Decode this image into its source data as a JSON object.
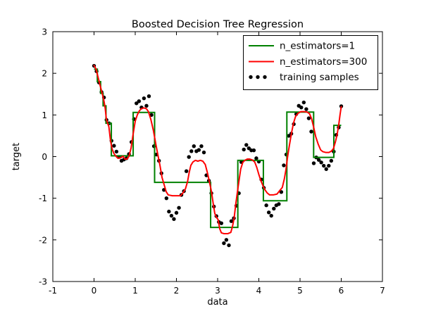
{
  "figure": {
    "title": "Boosted Decision Tree Regression",
    "xlabel": "data",
    "ylabel": "target",
    "background": "#ffffff",
    "axis_color": "#000000"
  },
  "chart_data": {
    "type": "line",
    "title": "Boosted Decision Tree Regression",
    "xlabel": "data",
    "ylabel": "target",
    "xlim": [
      -1,
      7
    ],
    "ylim": [
      -3,
      3
    ],
    "xticks": [
      -1,
      0,
      1,
      2,
      3,
      4,
      5,
      6,
      7
    ],
    "yticks": [
      -3,
      -2,
      -1,
      0,
      1,
      2,
      3
    ],
    "grid": false,
    "tick_direction": "in",
    "legend": {
      "position": "upper right",
      "entries": [
        {
          "label": "n_estimators=1",
          "color": "#008000",
          "marker": "line"
        },
        {
          "label": "n_estimators=300",
          "color": "#ff0000",
          "marker": "line"
        },
        {
          "label": "training samples",
          "color": "#000000",
          "marker": "dots"
        }
      ]
    },
    "series": [
      {
        "name": "n_estimators=1",
        "type": "step",
        "color": "#008000",
        "linewidth": 2,
        "steps": [
          [
            0.0,
            0.08,
            2.1
          ],
          [
            0.08,
            0.16,
            1.8
          ],
          [
            0.16,
            0.22,
            1.52
          ],
          [
            0.22,
            0.29,
            1.22
          ],
          [
            0.29,
            0.42,
            0.8
          ],
          [
            0.42,
            0.95,
            0.02
          ],
          [
            0.95,
            1.47,
            1.06
          ],
          [
            1.47,
            2.83,
            -0.62
          ],
          [
            2.83,
            3.49,
            -1.7
          ],
          [
            3.49,
            4.11,
            -0.09
          ],
          [
            4.11,
            4.68,
            -1.06
          ],
          [
            4.68,
            5.33,
            1.07
          ],
          [
            5.33,
            5.82,
            -0.02
          ],
          [
            5.82,
            6.0,
            0.75
          ]
        ]
      },
      {
        "name": "n_estimators=300",
        "type": "line",
        "color": "#ff0000",
        "linewidth": 2,
        "points": [
          [
            0.0,
            2.19
          ],
          [
            0.05,
            2.1
          ],
          [
            0.1,
            1.9
          ],
          [
            0.15,
            1.7
          ],
          [
            0.2,
            1.51
          ],
          [
            0.24,
            1.34
          ],
          [
            0.27,
            1.17
          ],
          [
            0.3,
            0.89
          ],
          [
            0.33,
            0.8
          ],
          [
            0.36,
            0.72
          ],
          [
            0.4,
            0.38
          ],
          [
            0.44,
            0.18
          ],
          [
            0.48,
            0.08
          ],
          [
            0.53,
            0.01
          ],
          [
            0.58,
            -0.04
          ],
          [
            0.65,
            -0.03
          ],
          [
            0.7,
            0.01
          ],
          [
            0.75,
            -0.06
          ],
          [
            0.8,
            -0.06
          ],
          [
            0.85,
            0.01
          ],
          [
            0.9,
            0.21
          ],
          [
            0.95,
            0.55
          ],
          [
            1.0,
            0.85
          ],
          [
            1.05,
            1.0
          ],
          [
            1.1,
            1.1
          ],
          [
            1.15,
            1.15
          ],
          [
            1.21,
            1.17
          ],
          [
            1.27,
            1.15
          ],
          [
            1.32,
            1.08
          ],
          [
            1.38,
            0.89
          ],
          [
            1.44,
            0.63
          ],
          [
            1.5,
            0.3
          ],
          [
            1.55,
            0.04
          ],
          [
            1.6,
            -0.21
          ],
          [
            1.65,
            -0.5
          ],
          [
            1.7,
            -0.67
          ],
          [
            1.75,
            -0.84
          ],
          [
            1.8,
            -0.92
          ],
          [
            1.9,
            -0.94
          ],
          [
            2.0,
            -0.94
          ],
          [
            2.1,
            -0.94
          ],
          [
            2.16,
            -0.87
          ],
          [
            2.22,
            -0.77
          ],
          [
            2.27,
            -0.6
          ],
          [
            2.31,
            -0.38
          ],
          [
            2.35,
            -0.21
          ],
          [
            2.4,
            -0.13
          ],
          [
            2.46,
            -0.09
          ],
          [
            2.52,
            -0.11
          ],
          [
            2.58,
            -0.09
          ],
          [
            2.64,
            -0.11
          ],
          [
            2.7,
            -0.19
          ],
          [
            2.75,
            -0.38
          ],
          [
            2.8,
            -0.6
          ],
          [
            2.85,
            -0.84
          ],
          [
            2.89,
            -1.11
          ],
          [
            2.93,
            -1.36
          ],
          [
            2.97,
            -1.46
          ],
          [
            3.01,
            -1.51
          ],
          [
            3.05,
            -1.73
          ],
          [
            3.09,
            -1.83
          ],
          [
            3.15,
            -1.85
          ],
          [
            3.25,
            -1.85
          ],
          [
            3.32,
            -1.82
          ],
          [
            3.36,
            -1.68
          ],
          [
            3.4,
            -1.48
          ],
          [
            3.44,
            -1.14
          ],
          [
            3.48,
            -0.85
          ],
          [
            3.52,
            -0.57
          ],
          [
            3.56,
            -0.3
          ],
          [
            3.61,
            -0.14
          ],
          [
            3.66,
            -0.09
          ],
          [
            3.72,
            -0.06
          ],
          [
            3.78,
            -0.06
          ],
          [
            3.84,
            -0.08
          ],
          [
            3.9,
            -0.13
          ],
          [
            3.95,
            -0.26
          ],
          [
            4.0,
            -0.43
          ],
          [
            4.05,
            -0.58
          ],
          [
            4.1,
            -0.7
          ],
          [
            4.15,
            -0.8
          ],
          [
            4.2,
            -0.87
          ],
          [
            4.26,
            -0.92
          ],
          [
            4.35,
            -0.92
          ],
          [
            4.44,
            -0.9
          ],
          [
            4.52,
            -0.8
          ],
          [
            4.57,
            -0.74
          ],
          [
            4.62,
            -0.53
          ],
          [
            4.66,
            -0.3
          ],
          [
            4.7,
            0.01
          ],
          [
            4.74,
            0.26
          ],
          [
            4.79,
            0.55
          ],
          [
            4.84,
            0.8
          ],
          [
            4.89,
            0.96
          ],
          [
            4.95,
            1.04
          ],
          [
            5.02,
            1.08
          ],
          [
            5.1,
            1.08
          ],
          [
            5.17,
            1.07
          ],
          [
            5.23,
            1.03
          ],
          [
            5.28,
            0.91
          ],
          [
            5.33,
            0.71
          ],
          [
            5.38,
            0.48
          ],
          [
            5.44,
            0.3
          ],
          [
            5.5,
            0.16
          ],
          [
            5.55,
            0.12
          ],
          [
            5.62,
            0.1
          ],
          [
            5.7,
            0.1
          ],
          [
            5.76,
            0.13
          ],
          [
            5.81,
            0.19
          ],
          [
            5.86,
            0.36
          ],
          [
            5.9,
            0.53
          ],
          [
            5.94,
            0.77
          ],
          [
            5.97,
            1.0
          ],
          [
            6.0,
            1.2
          ]
        ]
      },
      {
        "name": "training samples",
        "type": "scatter",
        "color": "#000000",
        "marker_radius": 2.7,
        "points": [
          [
            0.0,
            2.18
          ],
          [
            0.061,
            2.05
          ],
          [
            0.121,
            1.78
          ],
          [
            0.182,
            1.55
          ],
          [
            0.242,
            1.42
          ],
          [
            0.303,
            0.88
          ],
          [
            0.364,
            0.8
          ],
          [
            0.424,
            0.38
          ],
          [
            0.485,
            0.26
          ],
          [
            0.545,
            0.12
          ],
          [
            0.606,
            -0.01
          ],
          [
            0.667,
            -0.1
          ],
          [
            0.727,
            -0.07
          ],
          [
            0.788,
            -0.04
          ],
          [
            0.848,
            0.06
          ],
          [
            0.909,
            0.35
          ],
          [
            0.97,
            0.9
          ],
          [
            1.03,
            1.28
          ],
          [
            1.091,
            1.33
          ],
          [
            1.152,
            1.18
          ],
          [
            1.212,
            1.4
          ],
          [
            1.273,
            1.22
          ],
          [
            1.333,
            1.45
          ],
          [
            1.394,
            1.0
          ],
          [
            1.455,
            0.25
          ],
          [
            1.515,
            0.05
          ],
          [
            1.576,
            -0.1
          ],
          [
            1.636,
            -0.4
          ],
          [
            1.697,
            -0.8
          ],
          [
            1.758,
            -1.0
          ],
          [
            1.818,
            -1.32
          ],
          [
            1.879,
            -1.42
          ],
          [
            1.939,
            -1.5
          ],
          [
            2.0,
            -1.35
          ],
          [
            2.061,
            -1.23
          ],
          [
            2.121,
            -0.92
          ],
          [
            2.182,
            -0.83
          ],
          [
            2.242,
            -0.35
          ],
          [
            2.303,
            -0.01
          ],
          [
            2.364,
            0.13
          ],
          [
            2.424,
            0.25
          ],
          [
            2.485,
            0.13
          ],
          [
            2.545,
            0.16
          ],
          [
            2.606,
            0.25
          ],
          [
            2.667,
            0.1
          ],
          [
            2.727,
            -0.45
          ],
          [
            2.788,
            -0.58
          ],
          [
            2.848,
            -0.88
          ],
          [
            2.909,
            -1.2
          ],
          [
            2.97,
            -1.43
          ],
          [
            3.03,
            -1.57
          ],
          [
            3.091,
            -1.6
          ],
          [
            3.152,
            -2.08
          ],
          [
            3.212,
            -2.0
          ],
          [
            3.273,
            -2.13
          ],
          [
            3.333,
            -1.55
          ],
          [
            3.394,
            -1.48
          ],
          [
            3.455,
            -1.18
          ],
          [
            3.515,
            -0.88
          ],
          [
            3.576,
            -0.13
          ],
          [
            3.636,
            0.17
          ],
          [
            3.697,
            0.28
          ],
          [
            3.758,
            0.2
          ],
          [
            3.818,
            0.15
          ],
          [
            3.879,
            0.15
          ],
          [
            3.939,
            -0.04
          ],
          [
            4.0,
            -0.12
          ],
          [
            4.061,
            -0.55
          ],
          [
            4.121,
            -0.75
          ],
          [
            4.182,
            -1.17
          ],
          [
            4.242,
            -1.34
          ],
          [
            4.303,
            -1.42
          ],
          [
            4.364,
            -1.25
          ],
          [
            4.424,
            -1.17
          ],
          [
            4.485,
            -1.14
          ],
          [
            4.545,
            -0.85
          ],
          [
            4.606,
            -0.21
          ],
          [
            4.667,
            0.05
          ],
          [
            4.727,
            0.5
          ],
          [
            4.788,
            0.55
          ],
          [
            4.848,
            0.78
          ],
          [
            4.909,
            1.02
          ],
          [
            4.97,
            1.22
          ],
          [
            5.03,
            1.18
          ],
          [
            5.091,
            1.3
          ],
          [
            5.152,
            1.14
          ],
          [
            5.212,
            0.92
          ],
          [
            5.273,
            0.6
          ],
          [
            5.333,
            -0.16
          ],
          [
            5.394,
            -0.02
          ],
          [
            5.455,
            -0.08
          ],
          [
            5.515,
            -0.14
          ],
          [
            5.576,
            -0.22
          ],
          [
            5.636,
            -0.3
          ],
          [
            5.697,
            -0.22
          ],
          [
            5.758,
            -0.1
          ],
          [
            5.818,
            0.12
          ],
          [
            5.879,
            0.52
          ],
          [
            5.939,
            0.7
          ],
          [
            6.0,
            1.21
          ]
        ]
      }
    ]
  }
}
